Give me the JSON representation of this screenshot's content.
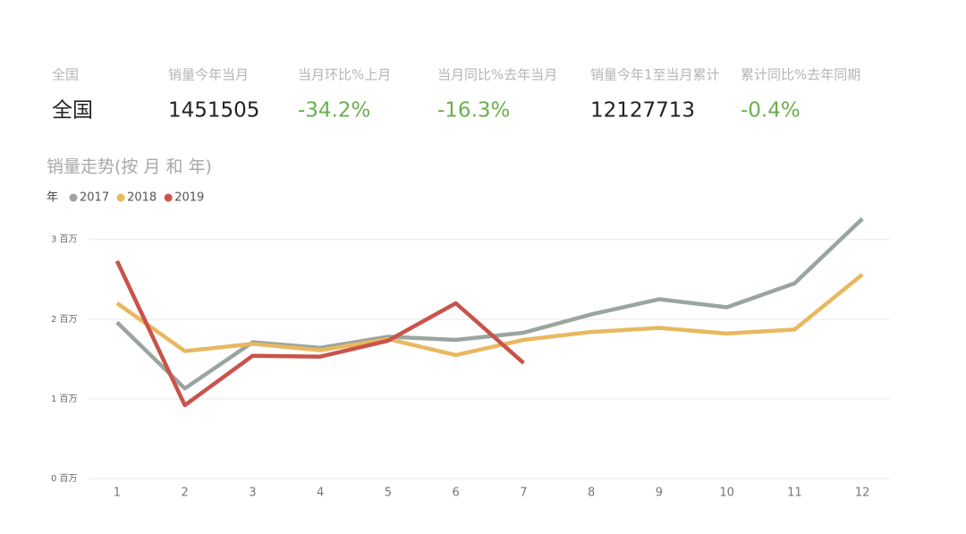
{
  "kpis": [
    {
      "label": "全国",
      "value": "全国",
      "color": "#222222"
    },
    {
      "label": "销量今年当月",
      "value": "1451505",
      "color": "#222222"
    },
    {
      "label": "当月环比%上月",
      "value": "-34.2%",
      "color": "#6aaf4f"
    },
    {
      "label": "当月同比%去年当月",
      "value": "-16.3%",
      "color": "#6aaf4f"
    },
    {
      "label": "销量今年1至当月累计",
      "value": "12127713",
      "color": "#222222"
    },
    {
      "label": "累计同比%去年同期",
      "value": "-0.4%",
      "color": "#6aaf4f"
    }
  ],
  "chart_data": {
    "type": "line",
    "title": "销量走势(按 月 和 年)",
    "legend_title": "年",
    "categories": [
      "1",
      "2",
      "3",
      "4",
      "5",
      "6",
      "7",
      "8",
      "9",
      "10",
      "11",
      "12"
    ],
    "series": [
      {
        "name": "2017",
        "color": "#9aa59f",
        "values": [
          1.96,
          1.13,
          1.71,
          1.64,
          1.78,
          1.74,
          1.83,
          2.06,
          2.25,
          2.15,
          2.45,
          3.26
        ]
      },
      {
        "name": "2018",
        "color": "#e8b860",
        "values": [
          2.2,
          1.6,
          1.69,
          1.61,
          1.75,
          1.55,
          1.74,
          1.84,
          1.89,
          1.82,
          1.87,
          2.56
        ]
      },
      {
        "name": "2019",
        "color": "#c9534a",
        "values": [
          2.73,
          0.92,
          1.54,
          1.53,
          1.73,
          2.2,
          1.45,
          null,
          null,
          null,
          null,
          null
        ]
      }
    ],
    "ylim": [
      0,
      3.3
    ],
    "yticks": [
      {
        "value": 0,
        "label": "0 百万"
      },
      {
        "value": 1,
        "label": "1 百万"
      },
      {
        "value": 2,
        "label": "2 百万"
      },
      {
        "value": 3,
        "label": "3 百万"
      }
    ],
    "grid": true
  }
}
